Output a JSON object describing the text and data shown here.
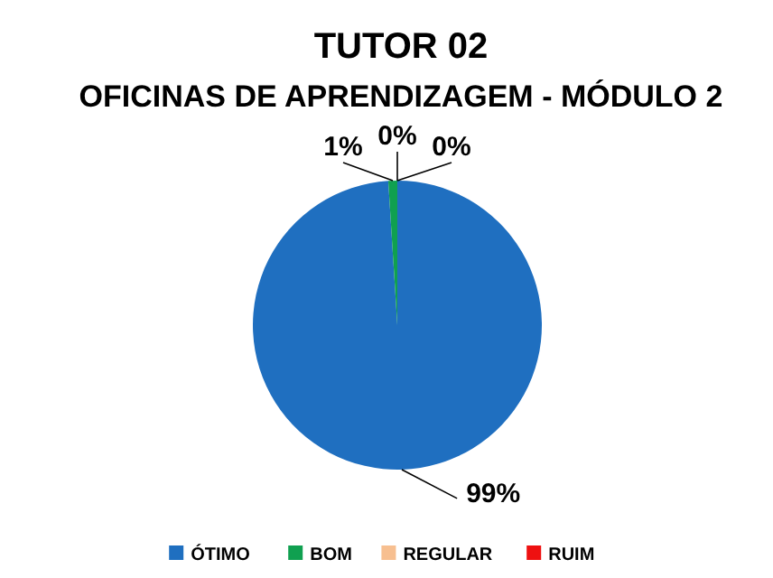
{
  "chart_data": {
    "type": "pie",
    "title": "TUTOR 02\nOFICINAS DE APRENDIZAGEM - MÓDULO 2",
    "categories": [
      "ÓTIMO",
      "BOM",
      "REGULAR",
      "RUIM"
    ],
    "values": [
      99,
      1,
      0,
      0
    ],
    "colors": [
      "#1f6fc0",
      "#10a050",
      "#f7bf90",
      "#ee1111"
    ],
    "value_labels": [
      "99%",
      "1%",
      "0%",
      "0%"
    ],
    "legend": "bottom"
  }
}
